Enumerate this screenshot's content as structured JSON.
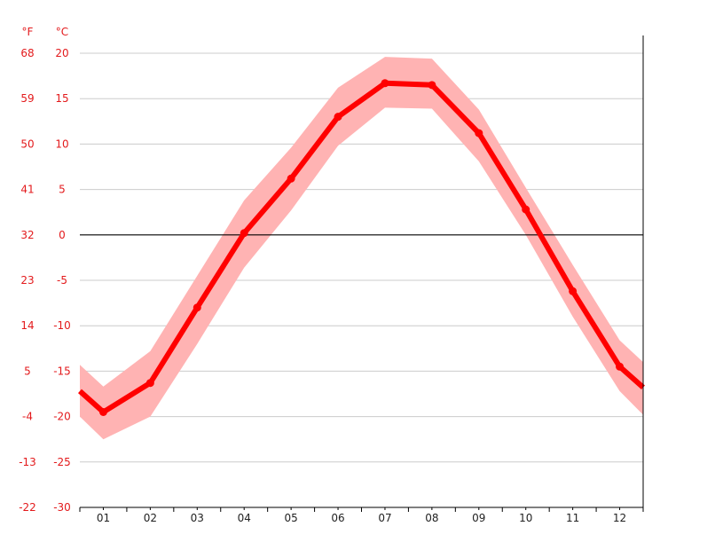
{
  "chart_data": {
    "type": "line",
    "title": "",
    "unit_labels": {
      "fahrenheit": "°F",
      "celsius": "°C"
    },
    "categories": [
      "01",
      "02",
      "03",
      "04",
      "05",
      "06",
      "07",
      "08",
      "09",
      "10",
      "11",
      "12"
    ],
    "y_ticks_celsius": [
      "20",
      "15",
      "10",
      "5",
      "0",
      "-5",
      "-10",
      "-15",
      "-20",
      "-25",
      "-30"
    ],
    "y_ticks_fahrenheit": [
      "68",
      "59",
      "50",
      "41",
      "32",
      "23",
      "14",
      "5",
      "-4",
      "-13",
      "-22"
    ],
    "ylim": [
      -30,
      20
    ],
    "grid": true,
    "series": [
      {
        "kind": "mean",
        "values": [
          -19.5,
          -16.3,
          -8.0,
          0.2,
          6.2,
          13.0,
          16.7,
          16.5,
          11.2,
          2.8,
          -6.2,
          -14.5
        ],
        "edge_values": [
          -17.2,
          -16.8
        ],
        "color": "#ff0000"
      },
      {
        "kind": "band-upper",
        "values": [
          -16.7,
          -12.8,
          -4.5,
          3.8,
          9.6,
          16.2,
          19.6,
          19.4,
          13.8,
          5.2,
          -3.3,
          -11.6
        ],
        "edge_values": [
          -14.3,
          -14.0
        ],
        "color": "#ffb3b3"
      },
      {
        "kind": "band-lower",
        "values": [
          -22.5,
          -20.0,
          -12.0,
          -3.6,
          2.7,
          9.8,
          14.0,
          13.9,
          8.1,
          0.0,
          -9.0,
          -17.2
        ],
        "edge_values": [
          -20.0,
          -19.8
        ],
        "color": "#ffb3b3"
      }
    ],
    "zero_line_color": "#000000",
    "grid_color": "#cccccc"
  }
}
